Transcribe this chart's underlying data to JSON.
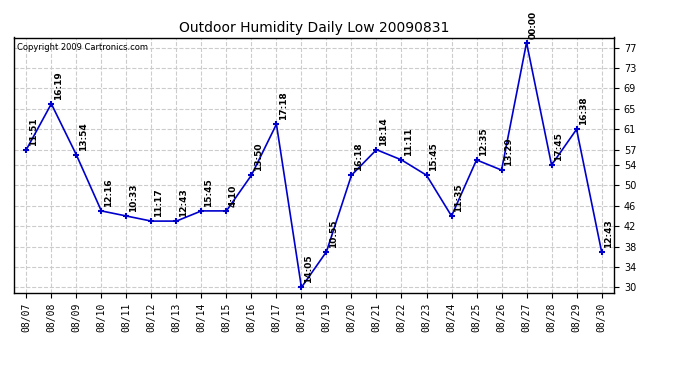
{
  "title": "Outdoor Humidity Daily Low 20090831",
  "copyright": "Copyright 2009 Cartronics.com",
  "dates": [
    "08/07",
    "08/08",
    "08/09",
    "08/10",
    "08/11",
    "08/12",
    "08/13",
    "08/14",
    "08/15",
    "08/16",
    "08/17",
    "08/18",
    "08/19",
    "08/20",
    "08/21",
    "08/22",
    "08/23",
    "08/24",
    "08/25",
    "08/26",
    "08/27",
    "08/28",
    "08/29",
    "08/30"
  ],
  "values": [
    57,
    66,
    56,
    45,
    44,
    43,
    43,
    45,
    45,
    52,
    62,
    30,
    37,
    52,
    57,
    55,
    52,
    44,
    55,
    53,
    78,
    54,
    61,
    37
  ],
  "annotations": [
    "11:51",
    "16:19",
    "13:54",
    "12:16",
    "10:33",
    "11:17",
    "12:43",
    "15:45",
    "4:10",
    "13:50",
    "17:18",
    "14:05",
    "10:55",
    "16:18",
    "18:14",
    "11:11",
    "15:45",
    "11:35",
    "12:35",
    "13:29",
    "00:00",
    "17:45",
    "16:38",
    "12:43"
  ],
  "line_color": "#0000cc",
  "marker": "+",
  "marker_size": 5,
  "marker_edge_width": 1.5,
  "linewidth": 1.2,
  "grid_color": "#cccccc",
  "grid_linestyle": "--",
  "background_color": "#ffffff",
  "ylim": [
    29,
    79
  ],
  "yticks": [
    30,
    34,
    38,
    42,
    46,
    50,
    54,
    57,
    61,
    65,
    69,
    73,
    77
  ],
  "title_fontsize": 10,
  "tick_fontsize": 7,
  "annotation_fontsize": 6.5,
  "annotation_color": "#000000",
  "border_color": "#000000",
  "copyright_fontsize": 6
}
